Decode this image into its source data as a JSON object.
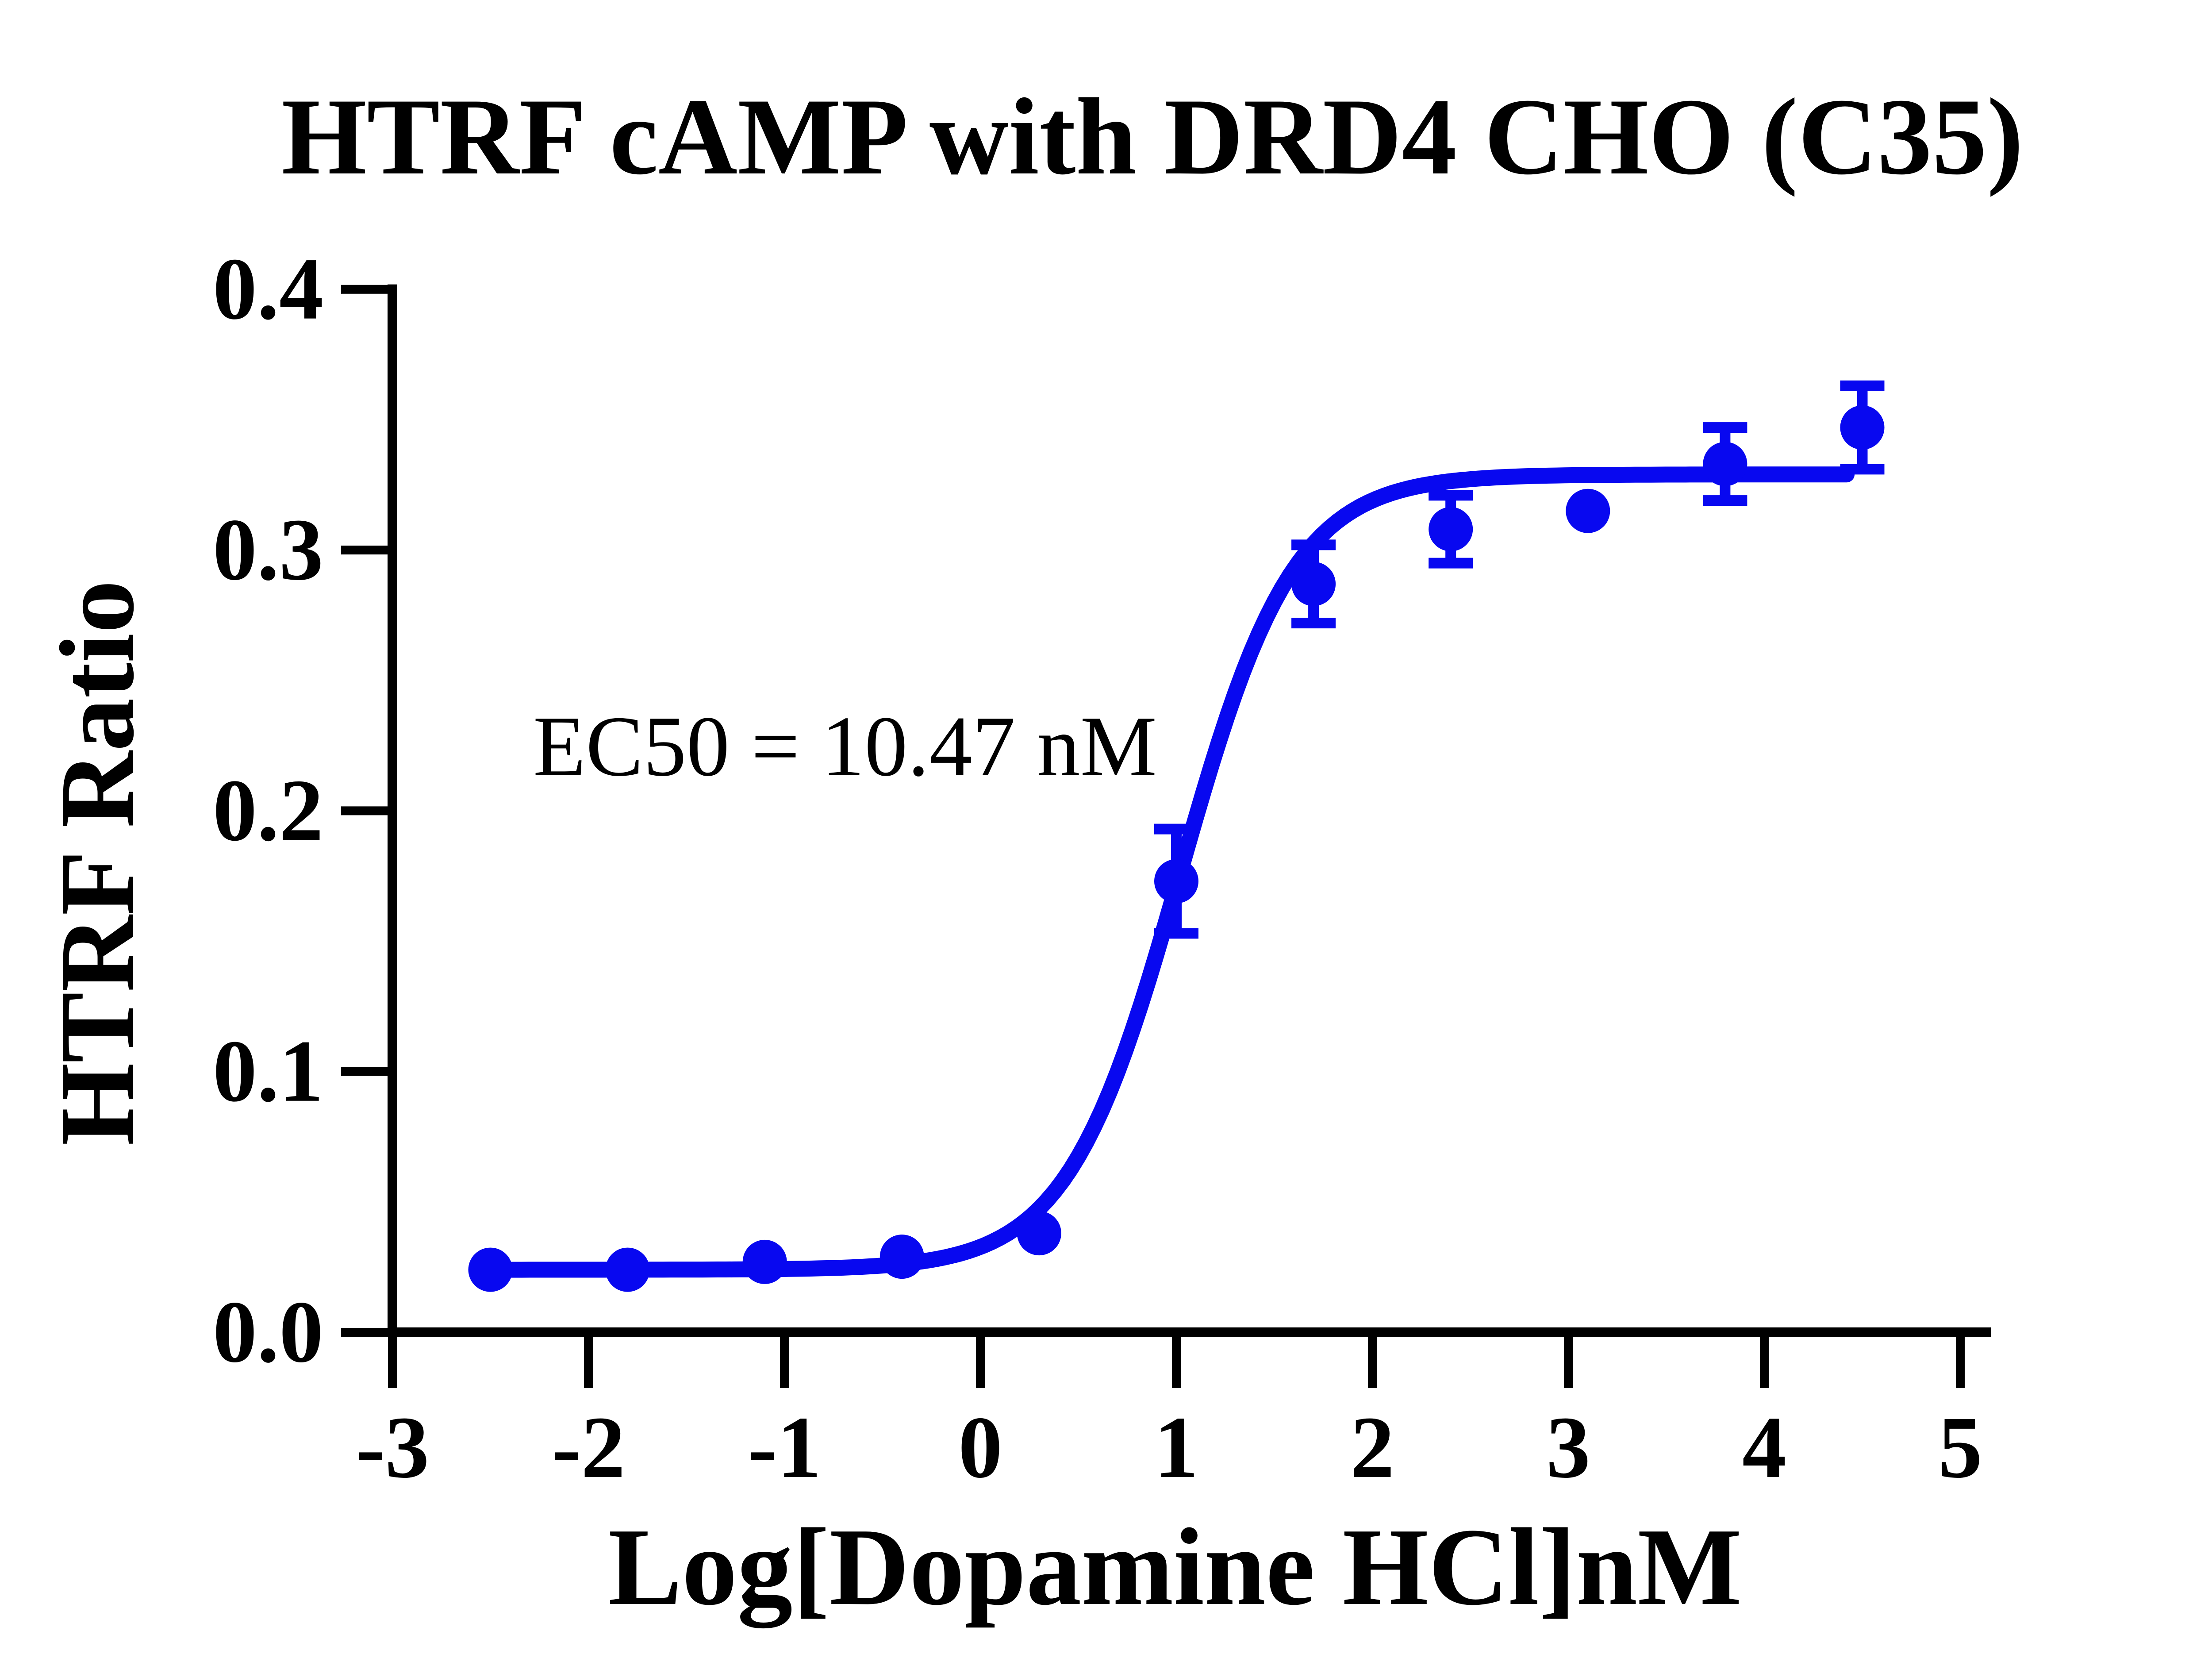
{
  "chart_data": {
    "type": "scatter",
    "title": "HTRF cAMP with DRD4 CHO（C35）",
    "xlabel": "Log[Dopamine HCl]nM",
    "ylabel": "HTRF Ratio",
    "annotation": "EC50 = 10.47 nM",
    "ec50_nM": 10.47,
    "xlim": [
      -3,
      5
    ],
    "ylim": [
      0.0,
      0.4
    ],
    "x_ticks": [
      "-3",
      "-2",
      "-1",
      "0",
      "1",
      "2",
      "3",
      "4",
      "5"
    ],
    "y_ticks": [
      "0.0",
      "0.1",
      "0.2",
      "0.3",
      "0.4"
    ],
    "grid": false,
    "legend_position": "none",
    "colors": {
      "series": "#0808f0",
      "axis": "#000000",
      "background": "#ffffff"
    },
    "series": [
      {
        "name": "Dopamine HCl",
        "marker": "circle",
        "color": "#0808f0",
        "points": [
          {
            "x": -2.5,
            "y": 0.024
          },
          {
            "x": -1.8,
            "y": 0.024
          },
          {
            "x": -1.1,
            "y": 0.027
          },
          {
            "x": -0.4,
            "y": 0.029
          },
          {
            "x": 0.3,
            "y": 0.038
          },
          {
            "x": 1.0,
            "y": 0.173,
            "sd": 0.02
          },
          {
            "x": 1.7,
            "y": 0.287,
            "sd": 0.015
          },
          {
            "x": 2.4,
            "y": 0.308,
            "sd": 0.013
          },
          {
            "x": 3.1,
            "y": 0.315
          },
          {
            "x": 3.8,
            "y": 0.333,
            "sd": 0.014
          },
          {
            "x": 4.5,
            "y": 0.347,
            "sd": 0.016
          }
        ]
      }
    ],
    "fit": {
      "model": "sigmoidal dose-response (variable slope)",
      "bottom": 0.024,
      "top": 0.329,
      "logEC50": 1.02,
      "hill": 1.5,
      "x_start": -2.5,
      "x_end": 4.45
    }
  }
}
